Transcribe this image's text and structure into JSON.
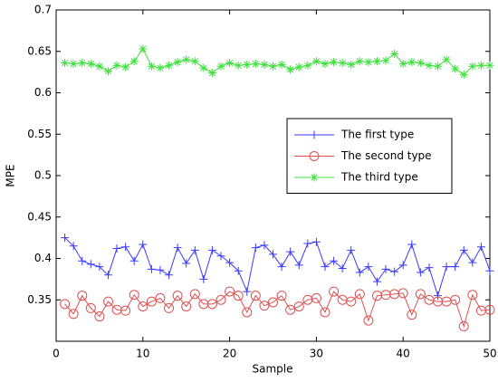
{
  "chart_data": {
    "type": "line",
    "xlabel": "Sample",
    "ylabel": "MPE",
    "x": [
      1,
      2,
      3,
      4,
      5,
      6,
      7,
      8,
      9,
      10,
      11,
      12,
      13,
      14,
      15,
      16,
      17,
      18,
      19,
      20,
      21,
      22,
      23,
      24,
      25,
      26,
      27,
      28,
      29,
      30,
      31,
      32,
      33,
      34,
      35,
      36,
      37,
      38,
      39,
      40,
      41,
      42,
      43,
      44,
      45,
      46,
      47,
      48,
      49,
      50
    ],
    "series": [
      {
        "name": "The first type",
        "color": "#3a3aff",
        "marker": "+",
        "values": [
          0.425,
          0.415,
          0.397,
          0.393,
          0.39,
          0.38,
          0.412,
          0.414,
          0.397,
          0.417,
          0.387,
          0.386,
          0.38,
          0.413,
          0.394,
          0.41,
          0.375,
          0.41,
          0.403,
          0.395,
          0.385,
          0.36,
          0.413,
          0.416,
          0.405,
          0.39,
          0.408,
          0.392,
          0.418,
          0.42,
          0.39,
          0.397,
          0.388,
          0.41,
          0.383,
          0.39,
          0.372,
          0.387,
          0.384,
          0.392,
          0.417,
          0.383,
          0.389,
          0.355,
          0.39,
          0.39,
          0.41,
          0.395,
          0.414,
          0.385
        ]
      },
      {
        "name": "The second type",
        "color": "#e05050",
        "marker": "o",
        "values": [
          0.345,
          0.333,
          0.355,
          0.34,
          0.33,
          0.348,
          0.338,
          0.337,
          0.356,
          0.342,
          0.348,
          0.352,
          0.34,
          0.355,
          0.342,
          0.357,
          0.345,
          0.345,
          0.35,
          0.36,
          0.355,
          0.335,
          0.355,
          0.343,
          0.347,
          0.355,
          0.338,
          0.342,
          0.35,
          0.352,
          0.335,
          0.36,
          0.35,
          0.348,
          0.357,
          0.325,
          0.355,
          0.356,
          0.357,
          0.358,
          0.332,
          0.357,
          0.35,
          0.348,
          0.348,
          0.35,
          0.318,
          0.356,
          0.337,
          0.338
        ]
      },
      {
        "name": "The third type",
        "color": "#3ee03e",
        "marker": "*",
        "values": [
          0.636,
          0.635,
          0.636,
          0.635,
          0.632,
          0.626,
          0.633,
          0.631,
          0.638,
          0.653,
          0.632,
          0.63,
          0.633,
          0.637,
          0.64,
          0.638,
          0.63,
          0.624,
          0.632,
          0.636,
          0.633,
          0.634,
          0.635,
          0.634,
          0.632,
          0.634,
          0.628,
          0.631,
          0.633,
          0.638,
          0.635,
          0.637,
          0.636,
          0.634,
          0.638,
          0.637,
          0.638,
          0.639,
          0.647,
          0.635,
          0.637,
          0.636,
          0.633,
          0.632,
          0.64,
          0.629,
          0.622,
          0.632,
          0.633,
          0.633
        ]
      }
    ],
    "xlim": [
      0,
      50
    ],
    "xticks": [
      0,
      10,
      20,
      30,
      40,
      50
    ],
    "ylim": [
      0.3,
      0.7
    ],
    "yticks": [
      0.35,
      0.4,
      0.45,
      0.5,
      0.55,
      0.6,
      0.65,
      0.7
    ],
    "legend": "right"
  }
}
